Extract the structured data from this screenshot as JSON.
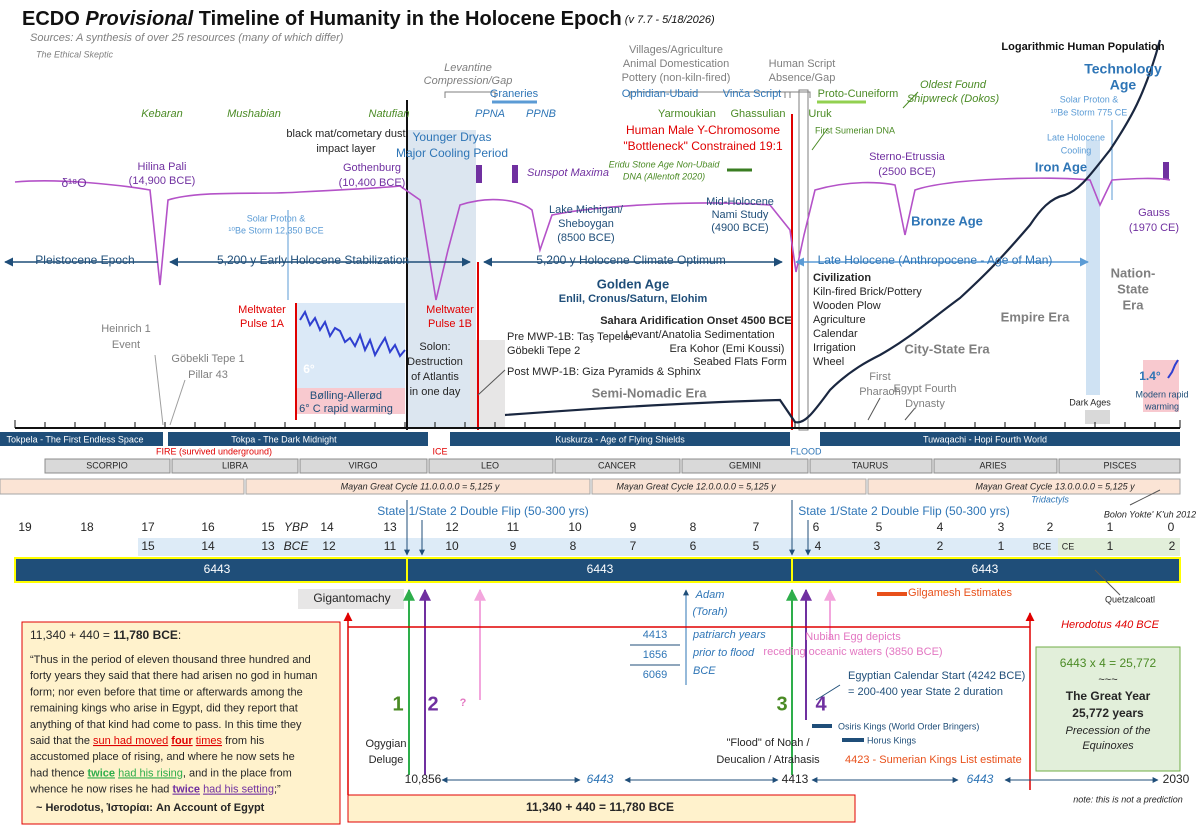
{
  "header": {
    "title_lead": "ECDO",
    "title_italic": "Provisional",
    "title_rest": "Timeline of Humanity in the Holocene Epoch",
    "version": "(v 7.7 - 5/18/2026)",
    "sources": "Sources: A synthesis of over 25 resources (many of which differ)",
    "author": "The Ethical Skeptic"
  },
  "labels": {
    "population": "Logarithmic Human Population",
    "technology_age": [
      "Technology",
      "Age"
    ],
    "levantine": [
      "Levantine",
      "Compression/Gap"
    ],
    "villages": [
      "Villages/Agriculture",
      "Animal Domestication",
      "Pottery (non-kiln-fired)"
    ],
    "script_gap": [
      "Human Script",
      "Absence/Gap"
    ],
    "shipwreck": [
      "Oldest Found",
      "Shipwreck (Dokos)"
    ],
    "graneries": "Graneries",
    "ophidian": "Ophidian-Ubaid",
    "vinca": "Vinča Script",
    "proto_cuneiform": "Proto-Cuneiform",
    "kebaran": "Kebaran",
    "mushabian": "Mushabian",
    "natufian": "Natufian",
    "ppna": "PPNA",
    "ppnb": "PPNB",
    "yarmoukian": "Yarmoukian",
    "ghassulian": "Ghassulian",
    "uruk": "Uruk",
    "solar_775": [
      "Solar Proton &",
      "¹⁰Be Storm 775 CE"
    ],
    "black_mat": [
      "black mat/cometary dust",
      "impact layer"
    ],
    "younger_dryas": [
      "Younger Dryas",
      "Major Cooling Period"
    ],
    "y_chromosome": [
      "Human Male Y-Chromosome",
      "\"Bottleneck\" Constrained 19:1"
    ],
    "sumerian_dna": "First Sumerian DNA",
    "late_cooling": [
      "Late Holocene",
      "Cooling"
    ],
    "hilina": [
      "Hilina Pali",
      "(14,900 BCE)"
    ],
    "gothenburg": [
      "Gothenburg",
      "(10,400 BCE)"
    ],
    "sunspot": "Sunspot Maxima",
    "eridu": [
      "Eridu Stone Age Non-Ubaid",
      "DNA (Allentoft 2020)"
    ],
    "sterno": [
      "Sterno-Etrussia",
      "(2500 BCE)"
    ],
    "iron_age": "Iron Age",
    "d18o": "δ¹⁸O",
    "bronze_age": "Bronze Age",
    "michigan": [
      "Lake Michigan/",
      "Sheboygan",
      "(8500 BCE)"
    ],
    "nami": [
      "Mid-Holocene",
      "Nami Study",
      "(4900 BCE)"
    ],
    "solar_12350": [
      "Solar Proton &",
      "¹⁰Be Storm 12,350 BCE"
    ],
    "gauss": [
      "Gauss",
      "(1970 CE)"
    ],
    "pleistocene": "Pleistocene Epoch",
    "early_holocene": "5,200 y Early Holocene Stabilization",
    "optimum": "5,200 y Holocene Climate Optimum",
    "late_holocene": "Late Holocene (Anthropocene -  Age of Man)",
    "nation_state": [
      "Nation-",
      "State",
      "Era"
    ],
    "golden_age": "Golden Age",
    "enlil": "Enlil, Cronus/Saturn, Elohim",
    "civilization": [
      "Civilization",
      "Kiln-fired Brick/Pottery",
      "Wooden Plow",
      "Agriculture",
      "Calendar",
      "Irrigation",
      "Wheel"
    ],
    "mwp1a": [
      "Meltwater",
      "Pulse 1A"
    ],
    "mwp1b": [
      "Meltwater",
      "Pulse 1B"
    ],
    "sahara": "Sahara Aridification Onset 4500 BCE",
    "levant_sed": "Levant/Anatolia Sedimentation",
    "era_kohor": "Era Kohor (Emi Koussi)",
    "seabed": "Seabed Flats Form",
    "pre_mwp": [
      "Pre MWP-1B: Taş Tepeler",
      "Göbekli Tepe 2"
    ],
    "post_mwp": "Post MWP-1B: Giza Pyramids & Sphinx",
    "empire_era": "Empire Era",
    "city_state": "City-State Era",
    "heinrich": [
      "Heinrich 1",
      "Event"
    ],
    "solon": [
      "Solon:",
      "Destruction",
      "of Atlantis",
      "in one day"
    ],
    "gobekli1": [
      "Göbekli Tepe 1",
      "Pillar 43"
    ],
    "six_deg": "6°",
    "one_four_deg": "1.4°",
    "semi_nomadic": "Semi-Nomadic Era",
    "first_pharaoh": [
      "First",
      "Pharaoh"
    ],
    "fourth_dynasty": [
      "Egypt Fourth",
      "Dynasty"
    ],
    "bolling": [
      "Bølling-Allerød",
      "6° C rapid warming"
    ],
    "dark_ages": "Dark Ages",
    "modern_warming": [
      "Modern rapid",
      "warming"
    ]
  },
  "hopi": [
    "Tokpela - The First Endless Space",
    "Tokpa - The Dark Midnight",
    "Kuskurza - Age of Flying Shields",
    "Tuwaqachi - Hopi Fourth World"
  ],
  "destructions": [
    "FIRE (survived underground)",
    "ICE",
    "FLOOD"
  ],
  "zodiac": [
    "SCORPIO",
    "LIBRA",
    "VIRGO",
    "LEO",
    "CANCER",
    "GEMINI",
    "TAURUS",
    "ARIES",
    "PISCES"
  ],
  "mayan": [
    "Mayan Great Cycle 11.0.0.0.0 = 5,125 y",
    "Mayan Great Cycle 12.0.0.0.0 = 5,125 y",
    "Mayan Great Cycle 13.0.0.0.0 = 5,125 y"
  ],
  "tridactyls": "Tridactyls",
  "bolon": "Bolon Yokte' K'uh 2012",
  "double_flip": "State 1/State 2 Double Flip (50-300 yrs)",
  "ybp": {
    "label": "YBP",
    "ticks": [
      "19",
      "18",
      "17",
      "16",
      "15",
      "14",
      "13",
      "12",
      "11",
      "10",
      "9",
      "8",
      "7",
      "6",
      "5",
      "4",
      "3",
      "2",
      "1",
      "0"
    ]
  },
  "bce": {
    "label": "BCE",
    "ce_label": "CE",
    "bce_ticks": [
      "15",
      "14",
      "13",
      "12",
      "11",
      "10",
      "9",
      "8",
      "7",
      "6",
      "5",
      "4",
      "3",
      "2",
      "1"
    ],
    "ce_ticks": [
      "1",
      "2"
    ]
  },
  "cycle": "6443",
  "lower": {
    "gigantomachy": "Gigantomachy",
    "adam": [
      "Adam",
      "(Torah)"
    ],
    "gilgamesh": "Gilgamesh Estimates",
    "quetzalcoatl": "Quetzalcoatl",
    "herodotus": "Herodotus 440 BCE",
    "patriarch_nums": [
      "4413",
      "1656",
      "6069"
    ],
    "patriarch_text": [
      "patriarch years",
      "prior to flood",
      "BCE"
    ],
    "nubian": [
      "Nubian Egg depicts",
      "receding oceanic waters (3850 BCE)"
    ],
    "egypt_calendar": [
      "Egyptian Calendar Start (4242 BCE)",
      "= 200-400 year State 2 duration"
    ],
    "n1": "1",
    "n2": "2",
    "q": "?",
    "n3": "3",
    "n4": "4",
    "osiris": "Osiris Kings (World Order Bringers)",
    "horus": "Horus Kings",
    "ogygian": [
      "Ogygian",
      "Deluge"
    ],
    "noah": [
      "\"Flood\" of Noah /",
      "Deucalion / Atrahasis"
    ],
    "sumerian": "4423 - Sumerian Kings List estimate",
    "dates": [
      "10,856",
      "4413",
      "2030"
    ],
    "sum": "11,340 + 440 = 11,780 BCE",
    "note": "note: this is not a prediction"
  },
  "great_year": {
    "eq": "6443  x  4  =  25,772",
    "tilde": "~~~",
    "title": "The Great Year",
    "years": "25,772 years",
    "sub": [
      "Precession of the",
      "Equinoxes"
    ]
  },
  "quote": {
    "heading": [
      "11,340 + 440 = ",
      "11,780 BCE",
      ":"
    ],
    "lines": [
      [
        "“Thus in the period of eleven thousand three hundred and"
      ],
      [
        "forty years they said that there had arisen no god in human"
      ],
      [
        "form; nor even before that time or afterwards among the"
      ],
      [
        "remaining kings who arise in Egypt, did they report that"
      ],
      [
        "anything of that kind had come to pass. In this time they"
      ],
      [
        "said that the ",
        {
          "text": "sun had moved",
          "color": "#e00000"
        },
        " ",
        {
          "text": "four",
          "color": "#e00000",
          "bold": true
        },
        " ",
        {
          "text": "times",
          "color": "#e00000"
        },
        " from his"
      ],
      [
        "accustomed place of rising, and where he now sets he"
      ],
      [
        "had thence ",
        {
          "text": "twice",
          "color": "#2eae4b",
          "bold": true
        },
        " ",
        {
          "text": "had his rising",
          "color": "#2eae4b"
        },
        ", and in the place from"
      ],
      [
        "whence he now rises he had ",
        {
          "text": "twice",
          "color": "#7030a0",
          "bold": true
        },
        " ",
        {
          "text": "had his setting",
          "color": "#7030a0"
        },
        ";”"
      ]
    ],
    "attribution": "~ Herodotus, Ἱστορίαι: An Account of Egypt"
  }
}
